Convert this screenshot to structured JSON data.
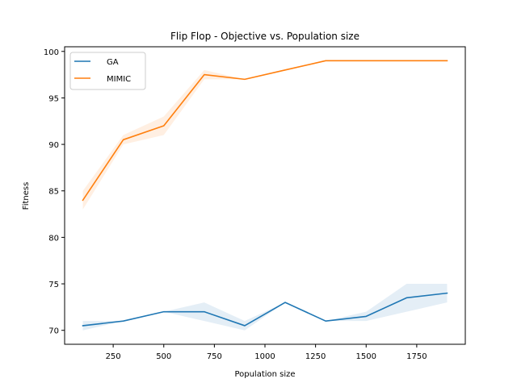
{
  "chart_data": {
    "type": "line",
    "title": "Flip Flop - Objective vs. Population size",
    "xlabel": "Population size",
    "ylabel": "Fitness",
    "xlim": [
      10,
      1990
    ],
    "ylim": [
      68.5,
      100.5
    ],
    "xticks": [
      250,
      500,
      750,
      1000,
      1250,
      1500,
      1750
    ],
    "yticks": [
      70,
      75,
      80,
      85,
      90,
      95,
      100
    ],
    "grid": false,
    "legend_position": "top-left",
    "x": [
      100,
      300,
      500,
      700,
      900,
      1100,
      1300,
      1500,
      1700,
      1900
    ],
    "series": [
      {
        "name": "GA",
        "color": "#1f77b4",
        "values": [
          70.5,
          71.0,
          72.0,
          72.0,
          70.5,
          73.0,
          71.0,
          71.5,
          73.5,
          74.0
        ],
        "band_low": [
          70.0,
          71.0,
          72.0,
          71.0,
          70.0,
          73.0,
          71.0,
          71.0,
          72.0,
          73.0
        ],
        "band_high": [
          71.0,
          71.0,
          72.0,
          73.0,
          71.0,
          73.0,
          71.0,
          72.0,
          75.0,
          75.0
        ]
      },
      {
        "name": "MIMIC",
        "color": "#ff7f0e",
        "values": [
          84.0,
          90.5,
          92.0,
          97.5,
          97.0,
          98.0,
          99.0,
          99.0,
          99.0,
          99.0
        ],
        "band_low": [
          83.0,
          90.0,
          91.0,
          97.0,
          97.0,
          98.0,
          99.0,
          99.0,
          99.0,
          99.0
        ],
        "band_high": [
          85.0,
          91.0,
          93.0,
          98.0,
          97.0,
          98.0,
          99.0,
          99.0,
          99.0,
          99.0
        ]
      }
    ]
  }
}
